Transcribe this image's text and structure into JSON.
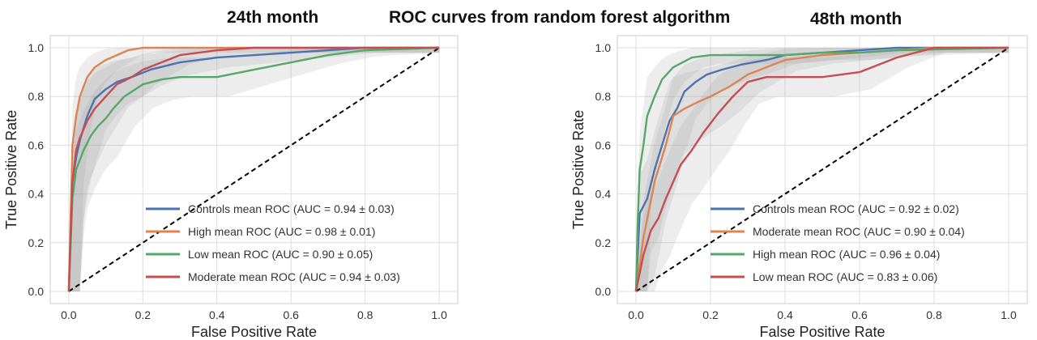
{
  "figure": {
    "main_title": "ROC curves from random forest algorithm",
    "left_title": "24th month",
    "right_title": "48th month"
  },
  "chart_data": [
    {
      "type": "line",
      "title": "24th month",
      "xlabel": "False Positive Rate",
      "ylabel": "True Positive Rate",
      "xlim": [
        -0.05,
        1.05
      ],
      "ylim": [
        -0.05,
        1.05
      ],
      "xticks": [
        "0.0",
        "0.2",
        "0.4",
        "0.6",
        "0.8",
        "1.0"
      ],
      "yticks": [
        "0.0",
        "0.2",
        "0.4",
        "0.6",
        "0.8",
        "1.0"
      ],
      "grid": true,
      "legend_position": "lower-right",
      "chance_line": {
        "x": [
          0,
          1
        ],
        "y": [
          0,
          1
        ],
        "style": "dashed",
        "color": "#000000"
      },
      "series": [
        {
          "name": "Controls mean ROC (AUC = 0.94 ± 0.03)",
          "color": "#4c72b0",
          "x": [
            0,
            0.01,
            0.02,
            0.03,
            0.05,
            0.07,
            0.1,
            0.13,
            0.17,
            0.22,
            0.3,
            0.4,
            0.5,
            0.6,
            0.7,
            0.8,
            1.0
          ],
          "y": [
            0,
            0.45,
            0.55,
            0.62,
            0.72,
            0.79,
            0.83,
            0.86,
            0.88,
            0.91,
            0.94,
            0.96,
            0.97,
            0.98,
            0.99,
            1.0,
            1.0
          ]
        },
        {
          "name": "High mean ROC (AUC = 0.98 ± 0.01)",
          "color": "#dd8452",
          "x": [
            0,
            0.01,
            0.02,
            0.03,
            0.05,
            0.07,
            0.1,
            0.13,
            0.16,
            0.2,
            0.3,
            0.5,
            1.0
          ],
          "y": [
            0,
            0.6,
            0.72,
            0.8,
            0.88,
            0.92,
            0.95,
            0.97,
            0.99,
            1.0,
            1.0,
            1.0,
            1.0
          ]
        },
        {
          "name": "Low mean ROC (AUC = 0.90 ± 0.05)",
          "color": "#55a868",
          "x": [
            0,
            0.01,
            0.02,
            0.04,
            0.06,
            0.08,
            0.1,
            0.12,
            0.15,
            0.2,
            0.25,
            0.3,
            0.4,
            0.5,
            0.6,
            0.7,
            0.8,
            1.0
          ],
          "y": [
            0,
            0.38,
            0.5,
            0.58,
            0.64,
            0.68,
            0.71,
            0.75,
            0.8,
            0.85,
            0.87,
            0.88,
            0.88,
            0.91,
            0.94,
            0.97,
            0.99,
            1.0
          ]
        },
        {
          "name": "Moderate mean ROC (AUC = 0.94 ± 0.03)",
          "color": "#c44e52",
          "x": [
            0,
            0.01,
            0.02,
            0.03,
            0.05,
            0.07,
            0.1,
            0.13,
            0.17,
            0.2,
            0.25,
            0.3,
            0.4,
            0.5,
            0.6,
            0.7,
            1.0
          ],
          "y": [
            0,
            0.45,
            0.58,
            0.63,
            0.7,
            0.75,
            0.8,
            0.85,
            0.88,
            0.91,
            0.94,
            0.97,
            0.99,
            1.0,
            1.0,
            1.0,
            1.0
          ]
        }
      ]
    },
    {
      "type": "line",
      "title": "48th month",
      "xlabel": "False Positive Rate",
      "ylabel": "True Positive Rate",
      "xlim": [
        -0.05,
        1.05
      ],
      "ylim": [
        -0.05,
        1.05
      ],
      "xticks": [
        "0.0",
        "0.2",
        "0.4",
        "0.6",
        "0.8",
        "1.0"
      ],
      "yticks": [
        "0.0",
        "0.2",
        "0.4",
        "0.6",
        "0.8",
        "1.0"
      ],
      "grid": true,
      "legend_position": "lower-right",
      "chance_line": {
        "x": [
          0,
          1
        ],
        "y": [
          0,
          1
        ],
        "style": "dashed",
        "color": "#000000"
      },
      "series": [
        {
          "name": "Controls mean ROC (AUC = 0.92 ± 0.02)",
          "color": "#4c72b0",
          "x": [
            0,
            0.01,
            0.03,
            0.05,
            0.07,
            0.09,
            0.11,
            0.13,
            0.16,
            0.19,
            0.23,
            0.28,
            0.35,
            0.4,
            0.5,
            0.6,
            0.7,
            0.8,
            1.0
          ],
          "y": [
            0,
            0.32,
            0.38,
            0.5,
            0.6,
            0.7,
            0.75,
            0.82,
            0.86,
            0.89,
            0.91,
            0.93,
            0.95,
            0.97,
            0.98,
            0.99,
            1.0,
            1.0,
            1.0
          ]
        },
        {
          "name": "Moderate mean ROC (AUC = 0.90 ± 0.04)",
          "color": "#dd8452",
          "x": [
            0,
            0.02,
            0.05,
            0.08,
            0.1,
            0.13,
            0.17,
            0.2,
            0.25,
            0.3,
            0.35,
            0.4,
            0.5,
            0.6,
            0.7,
            0.8,
            1.0
          ],
          "y": [
            0,
            0.22,
            0.45,
            0.6,
            0.72,
            0.75,
            0.78,
            0.8,
            0.84,
            0.89,
            0.92,
            0.95,
            0.97,
            0.98,
            0.99,
            1.0,
            1.0
          ]
        },
        {
          "name": "High mean ROC (AUC = 0.96 ± 0.04)",
          "color": "#55a868",
          "x": [
            0,
            0.005,
            0.01,
            0.02,
            0.03,
            0.05,
            0.07,
            0.1,
            0.15,
            0.2,
            0.3,
            0.4,
            0.5,
            0.6,
            0.7,
            1.0
          ],
          "y": [
            0,
            0.3,
            0.5,
            0.6,
            0.72,
            0.8,
            0.87,
            0.92,
            0.96,
            0.97,
            0.97,
            0.97,
            0.98,
            0.98,
            0.99,
            1.0
          ]
        },
        {
          "name": "Low mean ROC (AUC = 0.83 ± 0.06)",
          "color": "#c44e52",
          "x": [
            0,
            0.02,
            0.04,
            0.06,
            0.08,
            0.1,
            0.12,
            0.15,
            0.18,
            0.22,
            0.26,
            0.3,
            0.35,
            0.4,
            0.5,
            0.6,
            0.7,
            0.8,
            1.0
          ],
          "y": [
            0,
            0.15,
            0.25,
            0.3,
            0.38,
            0.45,
            0.52,
            0.58,
            0.65,
            0.73,
            0.8,
            0.86,
            0.88,
            0.88,
            0.88,
            0.9,
            0.96,
            1.0,
            1.0
          ]
        }
      ]
    }
  ]
}
